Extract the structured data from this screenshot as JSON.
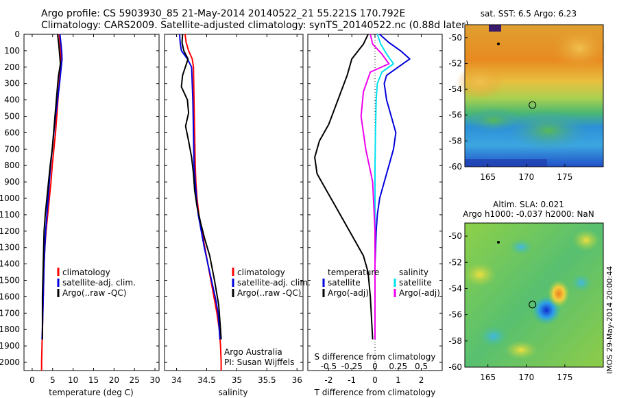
{
  "titles": {
    "line1": "Argo profile: CS 5903930_85 21-May-2014 20140522_21 55.221S 170.792E",
    "line2": "Climatology: CARS2009. Satellite-adjusted climatology: synTS_20140522.nc (0.88d later)"
  },
  "colors": {
    "climatology": "#ff0000",
    "satellite": "#0000dd",
    "argo": "#000000",
    "satellite_salinity": "#00e0f0",
    "argo_salinity_diff": "#ee00ee"
  },
  "depth_ticks": [
    "0",
    "100",
    "200",
    "300",
    "400",
    "500",
    "600",
    "700",
    "800",
    "900",
    "1000",
    "1100",
    "1200",
    "1300",
    "1400",
    "1500",
    "1600",
    "1700",
    "1800",
    "1900",
    "2000"
  ],
  "chart_data": [
    {
      "type": "line",
      "id": "temperature",
      "xlabel": "temperature (deg C)",
      "xlim": [
        -2,
        31
      ],
      "ylim": [
        2050,
        0
      ],
      "xticks": [
        "0",
        "5",
        "10",
        "15",
        "20",
        "25",
        "30"
      ],
      "legend": [
        "climatology",
        "satellite-adj. clim.",
        "Argo(..raw -QC)"
      ],
      "legend_position": "lower-center",
      "series": [
        {
          "name": "climatology",
          "color": "#ff0000",
          "x": [
            6.6,
            6.8,
            7.0,
            7.0,
            6.9,
            6.6,
            6.3,
            6.0,
            5.7,
            5.3,
            4.9,
            4.6,
            4.2,
            3.8,
            3.4,
            3.1,
            2.9,
            2.8,
            2.7,
            2.6,
            2.5,
            2.4,
            2.3,
            2.3
          ],
          "y": [
            0,
            50,
            100,
            150,
            200,
            300,
            400,
            500,
            600,
            700,
            800,
            900,
            1000,
            1100,
            1200,
            1300,
            1400,
            1500,
            1600,
            1700,
            1800,
            1900,
            2000,
            2050
          ]
        },
        {
          "name": "satellite-adj. clim.",
          "color": "#0000dd",
          "x": [
            6.8,
            7.0,
            7.2,
            7.3,
            7.1,
            6.7,
            6.2,
            5.7,
            5.3,
            4.9,
            4.5,
            4.2,
            3.9,
            3.6,
            3.3,
            3.1,
            2.9,
            2.8,
            2.7,
            2.6,
            2.5,
            2.4
          ],
          "y": [
            0,
            50,
            100,
            150,
            200,
            300,
            400,
            500,
            600,
            700,
            800,
            900,
            1000,
            1100,
            1200,
            1300,
            1400,
            1500,
            1600,
            1700,
            1800,
            1860
          ]
        },
        {
          "name": "Argo(..raw -QC)",
          "color": "#000000",
          "x": [
            6.2,
            6.5,
            6.7,
            6.9,
            6.4,
            5.9,
            5.4,
            4.9,
            4.4,
            4.0,
            3.6,
            3.2,
            2.9,
            2.8,
            2.7,
            2.6,
            2.5,
            2.5
          ],
          "y": [
            0,
            60,
            120,
            180,
            260,
            400,
            550,
            700,
            800,
            900,
            1000,
            1100,
            1200,
            1300,
            1400,
            1500,
            1600,
            1860
          ]
        }
      ]
    },
    {
      "type": "line",
      "id": "salinity",
      "xlabel": "salinity",
      "xlim": [
        33.8,
        36.1
      ],
      "ylim": [
        2050,
        0
      ],
      "xticks": [
        "34",
        "34.5",
        "35",
        "35.5",
        "36"
      ],
      "legend": [
        "climatology",
        "satellite-adj. clim.",
        "Argo(..raw -QC)"
      ],
      "legend_position": "lower-right",
      "annotations": [
        "Argo Australia",
        "PI: Susan Wijffels"
      ],
      "series": [
        {
          "name": "climatology",
          "color": "#ff0000",
          "x": [
            34.14,
            34.16,
            34.2,
            34.26,
            34.28,
            34.29,
            34.3,
            34.31,
            34.32,
            34.34,
            34.37,
            34.42,
            34.47,
            34.52,
            34.57,
            34.62,
            34.67,
            34.71,
            34.73,
            34.74,
            34.74
          ],
          "y": [
            0,
            50,
            100,
            150,
            200,
            400,
            600,
            800,
            900,
            1000,
            1100,
            1200,
            1300,
            1400,
            1500,
            1600,
            1700,
            1800,
            1900,
            2000,
            2050
          ]
        },
        {
          "name": "satellite-adj. clim.",
          "color": "#0000dd",
          "x": [
            34.05,
            34.06,
            34.08,
            34.18,
            34.25,
            34.27,
            34.28,
            34.29,
            34.31,
            34.33,
            34.36,
            34.41,
            34.46,
            34.52,
            34.58,
            34.64,
            34.69,
            34.72
          ],
          "y": [
            0,
            50,
            100,
            150,
            200,
            400,
            600,
            800,
            900,
            1000,
            1100,
            1200,
            1300,
            1400,
            1500,
            1600,
            1700,
            1860
          ]
        },
        {
          "name": "Argo(..raw -QC)",
          "color": "#000000",
          "x": [
            34.1,
            34.09,
            34.12,
            34.19,
            34.1,
            34.08,
            34.18,
            34.2,
            34.15,
            34.2,
            34.25,
            34.28,
            34.3,
            34.34,
            34.4,
            34.47,
            34.55,
            34.63,
            34.7,
            34.73,
            34.74
          ],
          "y": [
            0,
            50,
            100,
            150,
            250,
            320,
            400,
            480,
            560,
            650,
            750,
            850,
            950,
            1050,
            1150,
            1250,
            1350,
            1500,
            1650,
            1800,
            1860
          ]
        }
      ]
    },
    {
      "type": "line",
      "id": "difference",
      "xlabel": "T difference from climatology",
      "xlabel2": "S difference from climatology",
      "xlim": [
        -2.9,
        2.9
      ],
      "ylim": [
        2050,
        0
      ],
      "xticks": [
        "-2",
        "-1",
        "0",
        "1",
        "2"
      ],
      "xticks2": [
        "-0.5",
        "-0.25",
        "0",
        "0.25",
        "0.5"
      ],
      "legend": [
        "temperature",
        "satellite",
        "Argo(-adj)",
        "salinity",
        "satellite",
        "Argo(-adj)"
      ],
      "legend_position": "lower-center",
      "series": [
        {
          "name": "satellite",
          "color": "#0000dd",
          "x": [
            0.2,
            0.6,
            1.1,
            1.5,
            1.0,
            0.5,
            0.4,
            0.5,
            0.7,
            0.9,
            0.8,
            0.6,
            0.4,
            0.2,
            0.1,
            0.05,
            0.0,
            0.0,
            0.0,
            0.0
          ],
          "y": [
            0,
            50,
            100,
            150,
            200,
            250,
            300,
            400,
            500,
            600,
            700,
            800,
            900,
            1000,
            1100,
            1200,
            1400,
            1600,
            1800,
            1860
          ]
        },
        {
          "name": "Argo(-adj)",
          "color": "#000000",
          "x": [
            -0.3,
            -0.5,
            -1.0,
            -1.2,
            -1.6,
            -2.0,
            -2.4,
            -2.6,
            -2.5,
            -2.1,
            -1.7,
            -1.3,
            -0.9,
            -0.5,
            -0.3,
            -0.2,
            -0.1
          ],
          "y": [
            0,
            60,
            150,
            250,
            400,
            550,
            650,
            750,
            850,
            950,
            1050,
            1150,
            1250,
            1350,
            1450,
            1600,
            1860
          ]
        },
        {
          "name": "satellite",
          "color": "#00e0f0",
          "x": [
            0.1,
            0.25,
            0.5,
            0.8,
            0.3,
            0.1,
            0.05,
            0.02,
            0.0,
            0.0,
            0.0
          ],
          "y": [
            0,
            60,
            120,
            180,
            230,
            300,
            400,
            600,
            800,
            1200,
            1860
          ]
        },
        {
          "name": "Argo(-adj)",
          "color": "#ee00ee",
          "x": [
            -0.2,
            -0.1,
            0.3,
            0.6,
            -0.2,
            -0.5,
            -0.6,
            -0.4,
            -0.1,
            0.0,
            0.0
          ],
          "y": [
            0,
            60,
            120,
            180,
            230,
            350,
            500,
            700,
            900,
            1200,
            1860
          ]
        }
      ]
    },
    {
      "type": "heatmap",
      "id": "sst-map",
      "title": "sat. SST: 6.5  Argo: 6.23",
      "xlim": [
        162,
        180
      ],
      "ylim": [
        -60,
        -49
      ],
      "xticks": [
        "165",
        "170",
        "175"
      ],
      "yticks": [
        "-50",
        "-52",
        "-54",
        "-56",
        "-58",
        "-60"
      ],
      "argo_marker": {
        "lon": 170.792,
        "lat": -55.221
      }
    },
    {
      "type": "heatmap",
      "id": "sla-map",
      "title": "Altim. SLA: 0.021",
      "title2": "Argo h1000: -0.037 h2000: NaN",
      "xlim": [
        162,
        180
      ],
      "ylim": [
        -60,
        -49
      ],
      "xticks": [
        "165",
        "170",
        "175"
      ],
      "yticks": [
        "-50",
        "-52",
        "-54",
        "-56",
        "-58",
        "-60"
      ],
      "argo_marker": {
        "lon": 170.792,
        "lat": -55.221
      }
    }
  ],
  "footer": "IMOS 29-May-2014 20:00:44"
}
